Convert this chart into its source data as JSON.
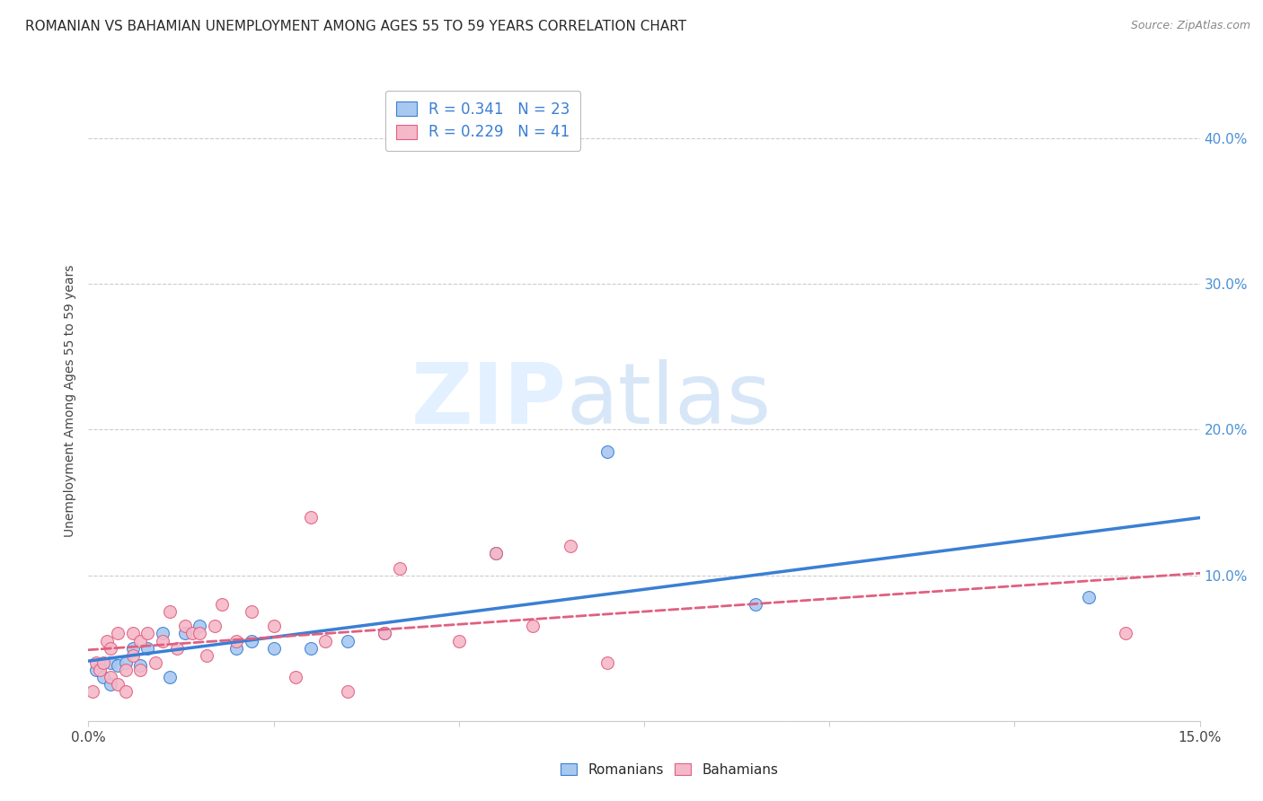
{
  "title": "ROMANIAN VS BAHAMIAN UNEMPLOYMENT AMONG AGES 55 TO 59 YEARS CORRELATION CHART",
  "source": "Source: ZipAtlas.com",
  "ylabel": "Unemployment Among Ages 55 to 59 years",
  "xlim": [
    0.0,
    0.15
  ],
  "ylim": [
    0.0,
    0.44
  ],
  "yticks_right": [
    0.1,
    0.2,
    0.3,
    0.4
  ],
  "ytick_labels_right": [
    "10.0%",
    "20.0%",
    "30.0%",
    "40.0%"
  ],
  "romanian_R": 0.341,
  "romanian_N": 23,
  "bahamian_R": 0.229,
  "bahamian_N": 41,
  "romanian_color": "#a8c8f0",
  "bahamian_color": "#f5b8c8",
  "trendline_romanian_color": "#3a7fd4",
  "trendline_bahamian_color": "#e06080",
  "watermark_zip": "ZIP",
  "watermark_atlas": "atlas",
  "romanians_x": [
    0.001,
    0.002,
    0.003,
    0.003,
    0.004,
    0.005,
    0.006,
    0.007,
    0.008,
    0.01,
    0.011,
    0.013,
    0.015,
    0.02,
    0.022,
    0.025,
    0.03,
    0.035,
    0.04,
    0.055,
    0.07,
    0.09,
    0.135
  ],
  "romanians_y": [
    0.035,
    0.03,
    0.04,
    0.025,
    0.038,
    0.04,
    0.05,
    0.038,
    0.05,
    0.06,
    0.03,
    0.06,
    0.065,
    0.05,
    0.055,
    0.05,
    0.05,
    0.055,
    0.06,
    0.115,
    0.185,
    0.08,
    0.085
  ],
  "bahamians_x": [
    0.0005,
    0.001,
    0.0015,
    0.002,
    0.0025,
    0.003,
    0.003,
    0.004,
    0.004,
    0.005,
    0.005,
    0.006,
    0.006,
    0.007,
    0.007,
    0.008,
    0.009,
    0.01,
    0.011,
    0.012,
    0.013,
    0.014,
    0.015,
    0.016,
    0.017,
    0.018,
    0.02,
    0.022,
    0.025,
    0.028,
    0.03,
    0.032,
    0.035,
    0.04,
    0.042,
    0.05,
    0.055,
    0.06,
    0.065,
    0.07,
    0.14
  ],
  "bahamians_y": [
    0.02,
    0.04,
    0.035,
    0.04,
    0.055,
    0.03,
    0.05,
    0.025,
    0.06,
    0.035,
    0.02,
    0.045,
    0.06,
    0.035,
    0.055,
    0.06,
    0.04,
    0.055,
    0.075,
    0.05,
    0.065,
    0.06,
    0.06,
    0.045,
    0.065,
    0.08,
    0.055,
    0.075,
    0.065,
    0.03,
    0.14,
    0.055,
    0.02,
    0.06,
    0.105,
    0.055,
    0.115,
    0.065,
    0.12,
    0.04,
    0.06
  ],
  "background_color": "#ffffff",
  "grid_color": "#cccccc",
  "title_fontsize": 11,
  "axis_fontsize": 11,
  "legend_fontsize": 12,
  "marker_size": 100
}
